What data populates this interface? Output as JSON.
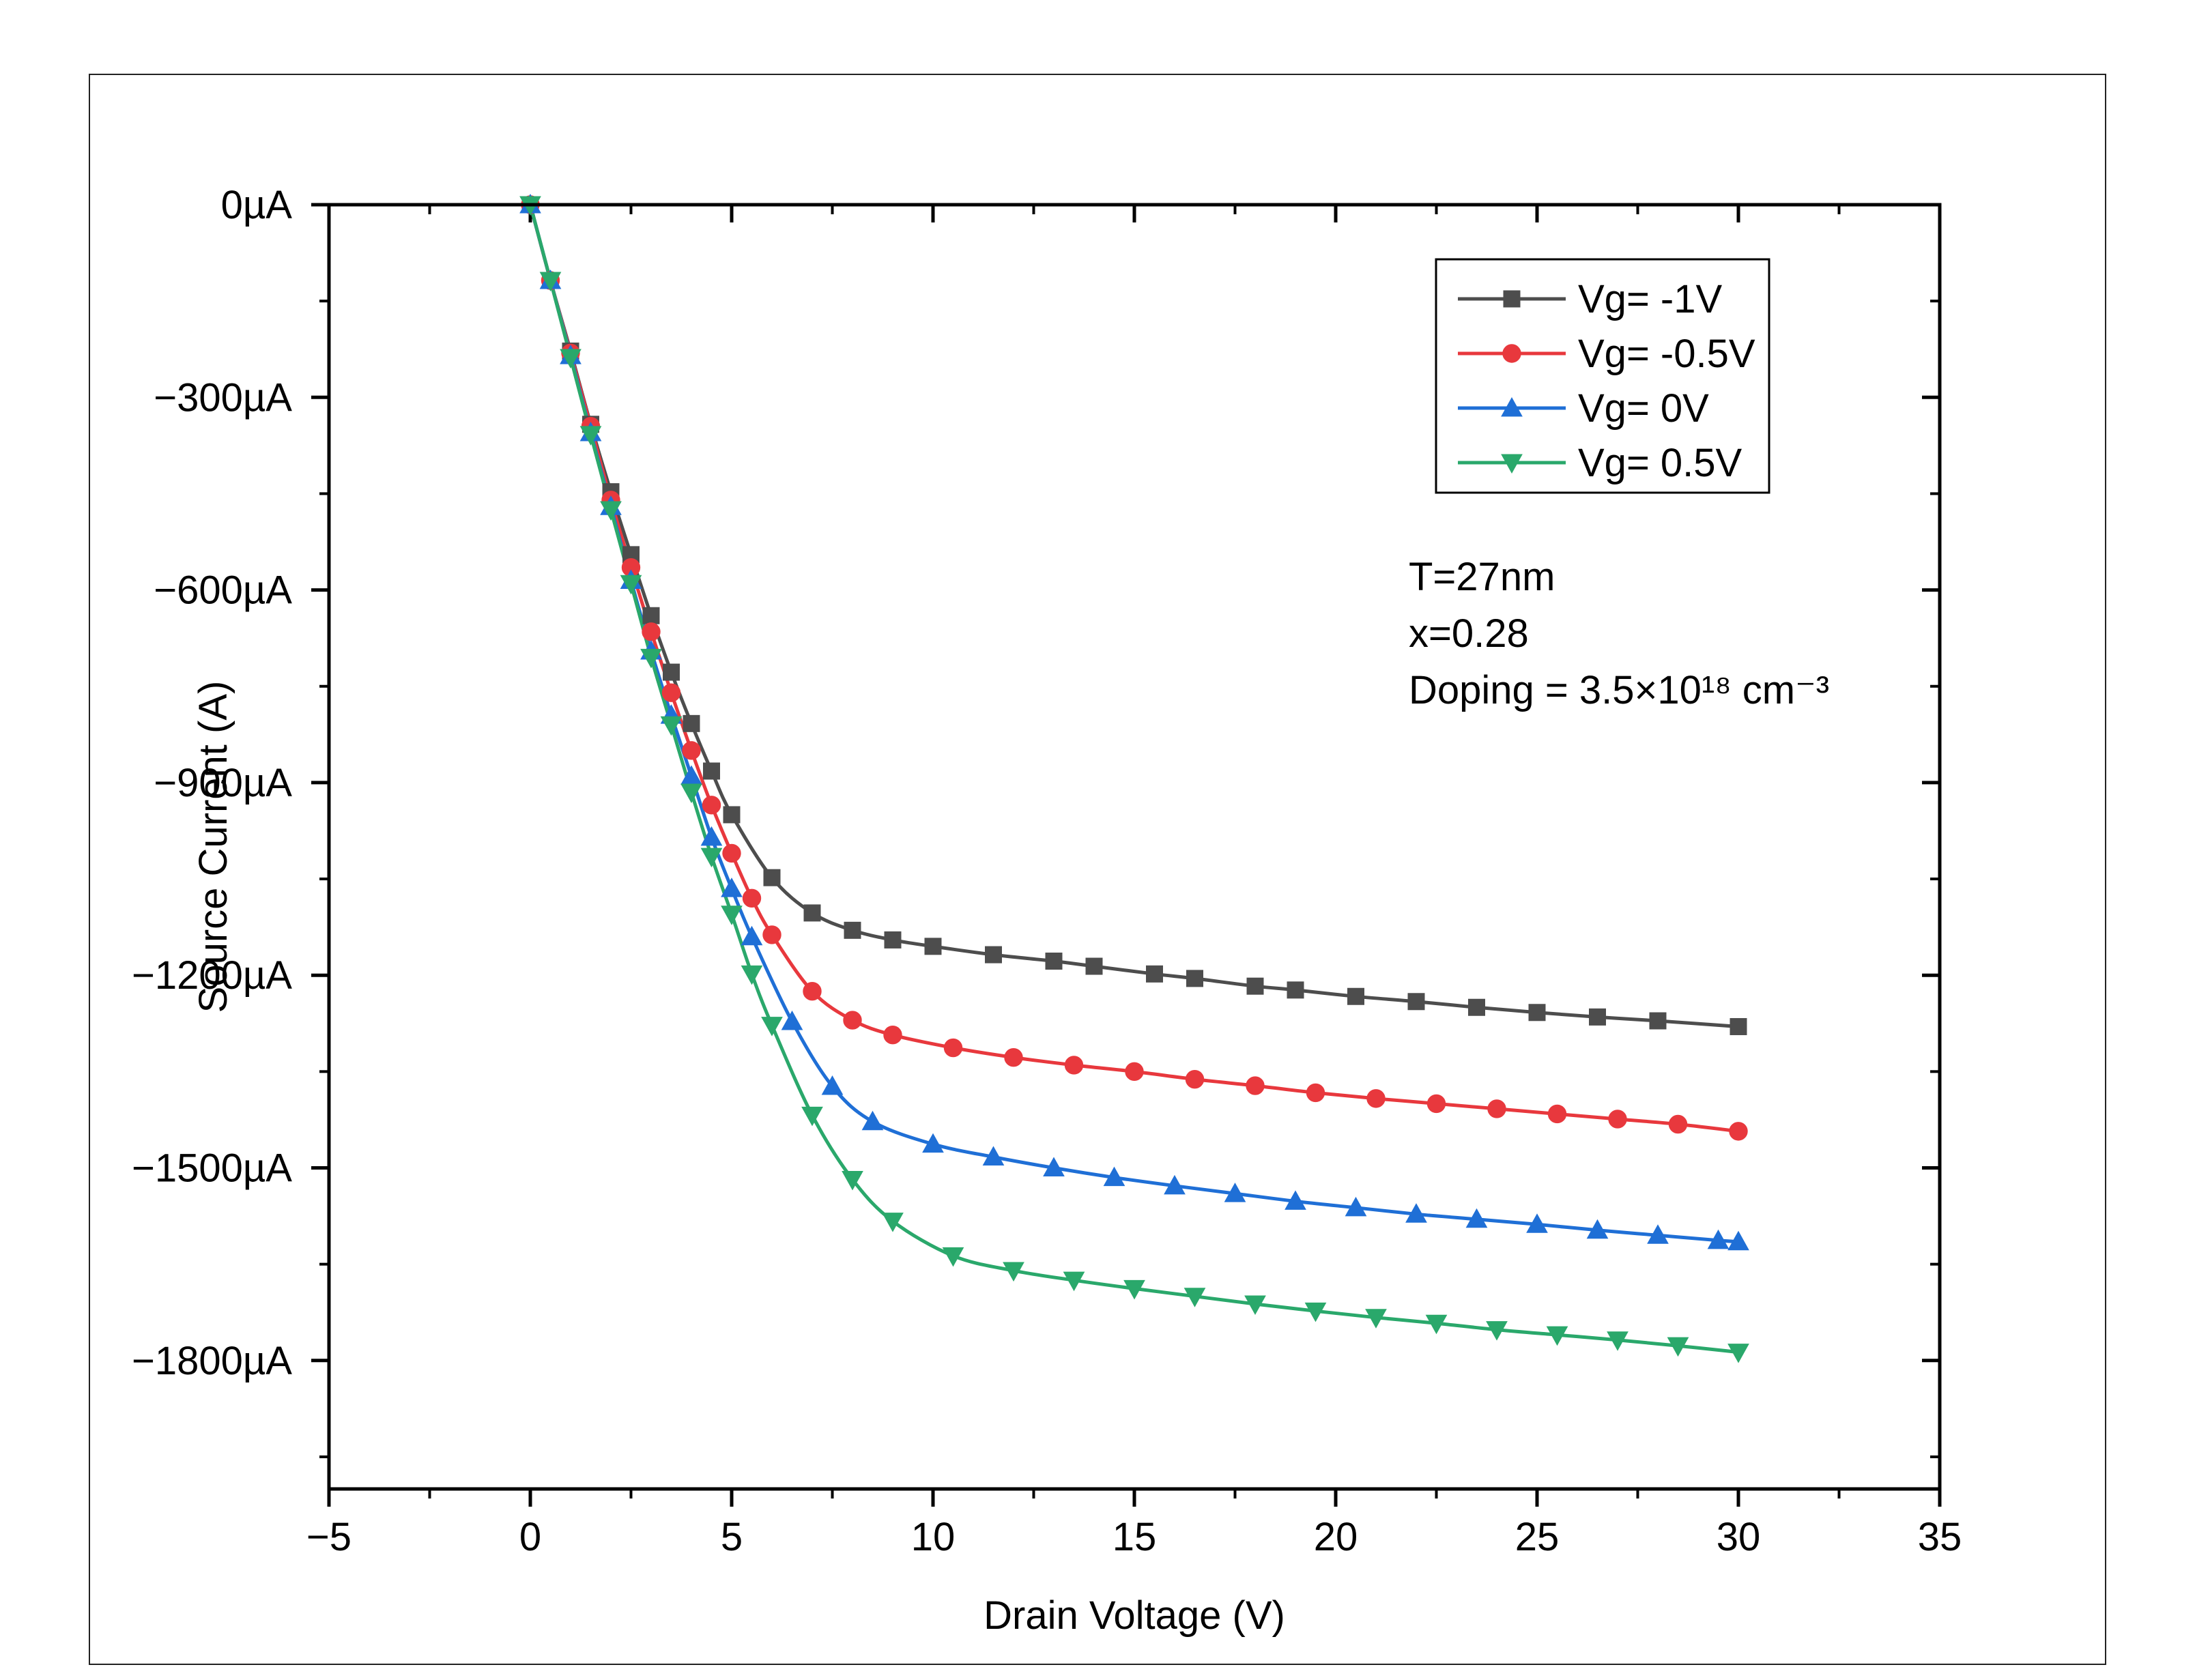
{
  "chart_data": {
    "type": "line",
    "title": "",
    "xlabel": "Drain Voltage (V)",
    "ylabel": "Source Current (A)",
    "xlim": [
      -5,
      35
    ],
    "ylim": [
      -2000,
      0
    ],
    "x_ticks": [
      -5,
      0,
      5,
      10,
      15,
      20,
      25,
      30,
      35
    ],
    "x_tick_labels": [
      "−5",
      "0",
      "5",
      "10",
      "15",
      "20",
      "25",
      "30",
      "35"
    ],
    "y_ticks": [
      0,
      -300,
      -600,
      -900,
      -1200,
      -1500,
      -1800
    ],
    "y_tick_labels": [
      "0µA",
      "−300µA",
      "−600µA",
      "−900µA",
      "−1200µA",
      "−1500µA",
      "−1800µA"
    ],
    "grid": false,
    "legend_position": "top-right",
    "annotations": [
      "T=27nm",
      "x=0.28",
      "Doping = 3.5×10¹⁸ cm⁻³"
    ],
    "series": [
      {
        "name": "Vg= -1V",
        "color": "#4d4d4d",
        "marker": "square",
        "x": [
          0,
          0.5,
          1,
          1.5,
          2,
          2.5,
          3,
          3.5,
          4,
          4.5,
          5,
          6,
          7,
          8,
          9,
          10,
          11.5,
          13,
          14,
          15.5,
          16.5,
          18,
          19,
          20.5,
          22,
          23.5,
          25,
          26.5,
          28,
          30
        ],
        "y": [
          0,
          -118,
          -228,
          -342,
          -447,
          -545,
          -640,
          -728,
          -808,
          -882,
          -950,
          -1048,
          -1103,
          -1130,
          -1145,
          -1155,
          -1168,
          -1178,
          -1186,
          -1198,
          -1205,
          -1217,
          -1223,
          -1233,
          -1241,
          -1250,
          -1258,
          -1265,
          -1271,
          -1280
        ]
      },
      {
        "name": "Vg= -0.5V",
        "color": "#e8383d",
        "marker": "circle",
        "x": [
          0,
          0.5,
          1,
          1.5,
          2,
          2.5,
          3,
          3.5,
          4,
          4.5,
          5,
          5.5,
          6,
          7,
          8,
          9,
          10.5,
          12,
          13.5,
          15,
          16.5,
          18,
          19.5,
          21,
          22.5,
          24,
          25.5,
          27,
          28.5,
          30
        ],
        "y": [
          0,
          -118,
          -231,
          -345,
          -460,
          -565,
          -665,
          -760,
          -850,
          -935,
          -1010,
          -1080,
          -1137,
          -1225,
          -1270,
          -1293,
          -1313,
          -1328,
          -1340,
          -1350,
          -1362,
          -1372,
          -1383,
          -1392,
          -1400,
          -1408,
          -1416,
          -1424,
          -1432,
          -1443
        ]
      },
      {
        "name": "Vg= 0V",
        "color": "#1f6fd6",
        "marker": "triangle-up",
        "x": [
          0,
          0.5,
          1,
          1.5,
          2,
          2.5,
          3,
          3.5,
          4,
          4.5,
          5,
          5.5,
          6.5,
          7.5,
          8.5,
          10,
          11.5,
          13,
          14.5,
          16,
          17.5,
          19,
          20.5,
          22,
          23.5,
          25,
          26.5,
          28,
          29.5,
          30
        ],
        "y": [
          0,
          -118,
          -235,
          -355,
          -470,
          -585,
          -695,
          -795,
          -890,
          -985,
          -1065,
          -1140,
          -1272,
          -1373,
          -1428,
          -1463,
          -1483,
          -1500,
          -1515,
          -1528,
          -1540,
          -1552,
          -1562,
          -1572,
          -1580,
          -1588,
          -1597,
          -1605,
          -1613,
          -1615
        ]
      },
      {
        "name": "Vg= 0.5V",
        "color": "#2aa86b",
        "marker": "triangle-down",
        "x": [
          0,
          0.5,
          1,
          1.5,
          2,
          2.5,
          3,
          3.5,
          4,
          4.5,
          5,
          5.5,
          6,
          7,
          8,
          9,
          10.5,
          12,
          13.5,
          15,
          16.5,
          18,
          19.5,
          21,
          22.5,
          24,
          25.5,
          27,
          28.5,
          30
        ],
        "y": [
          0,
          -118,
          -238,
          -358,
          -475,
          -590,
          -705,
          -810,
          -915,
          -1015,
          -1105,
          -1198,
          -1278,
          -1418,
          -1518,
          -1583,
          -1637,
          -1660,
          -1675,
          -1688,
          -1700,
          -1712,
          -1723,
          -1733,
          -1742,
          -1752,
          -1760,
          -1768,
          -1777,
          -1787
        ]
      }
    ]
  }
}
